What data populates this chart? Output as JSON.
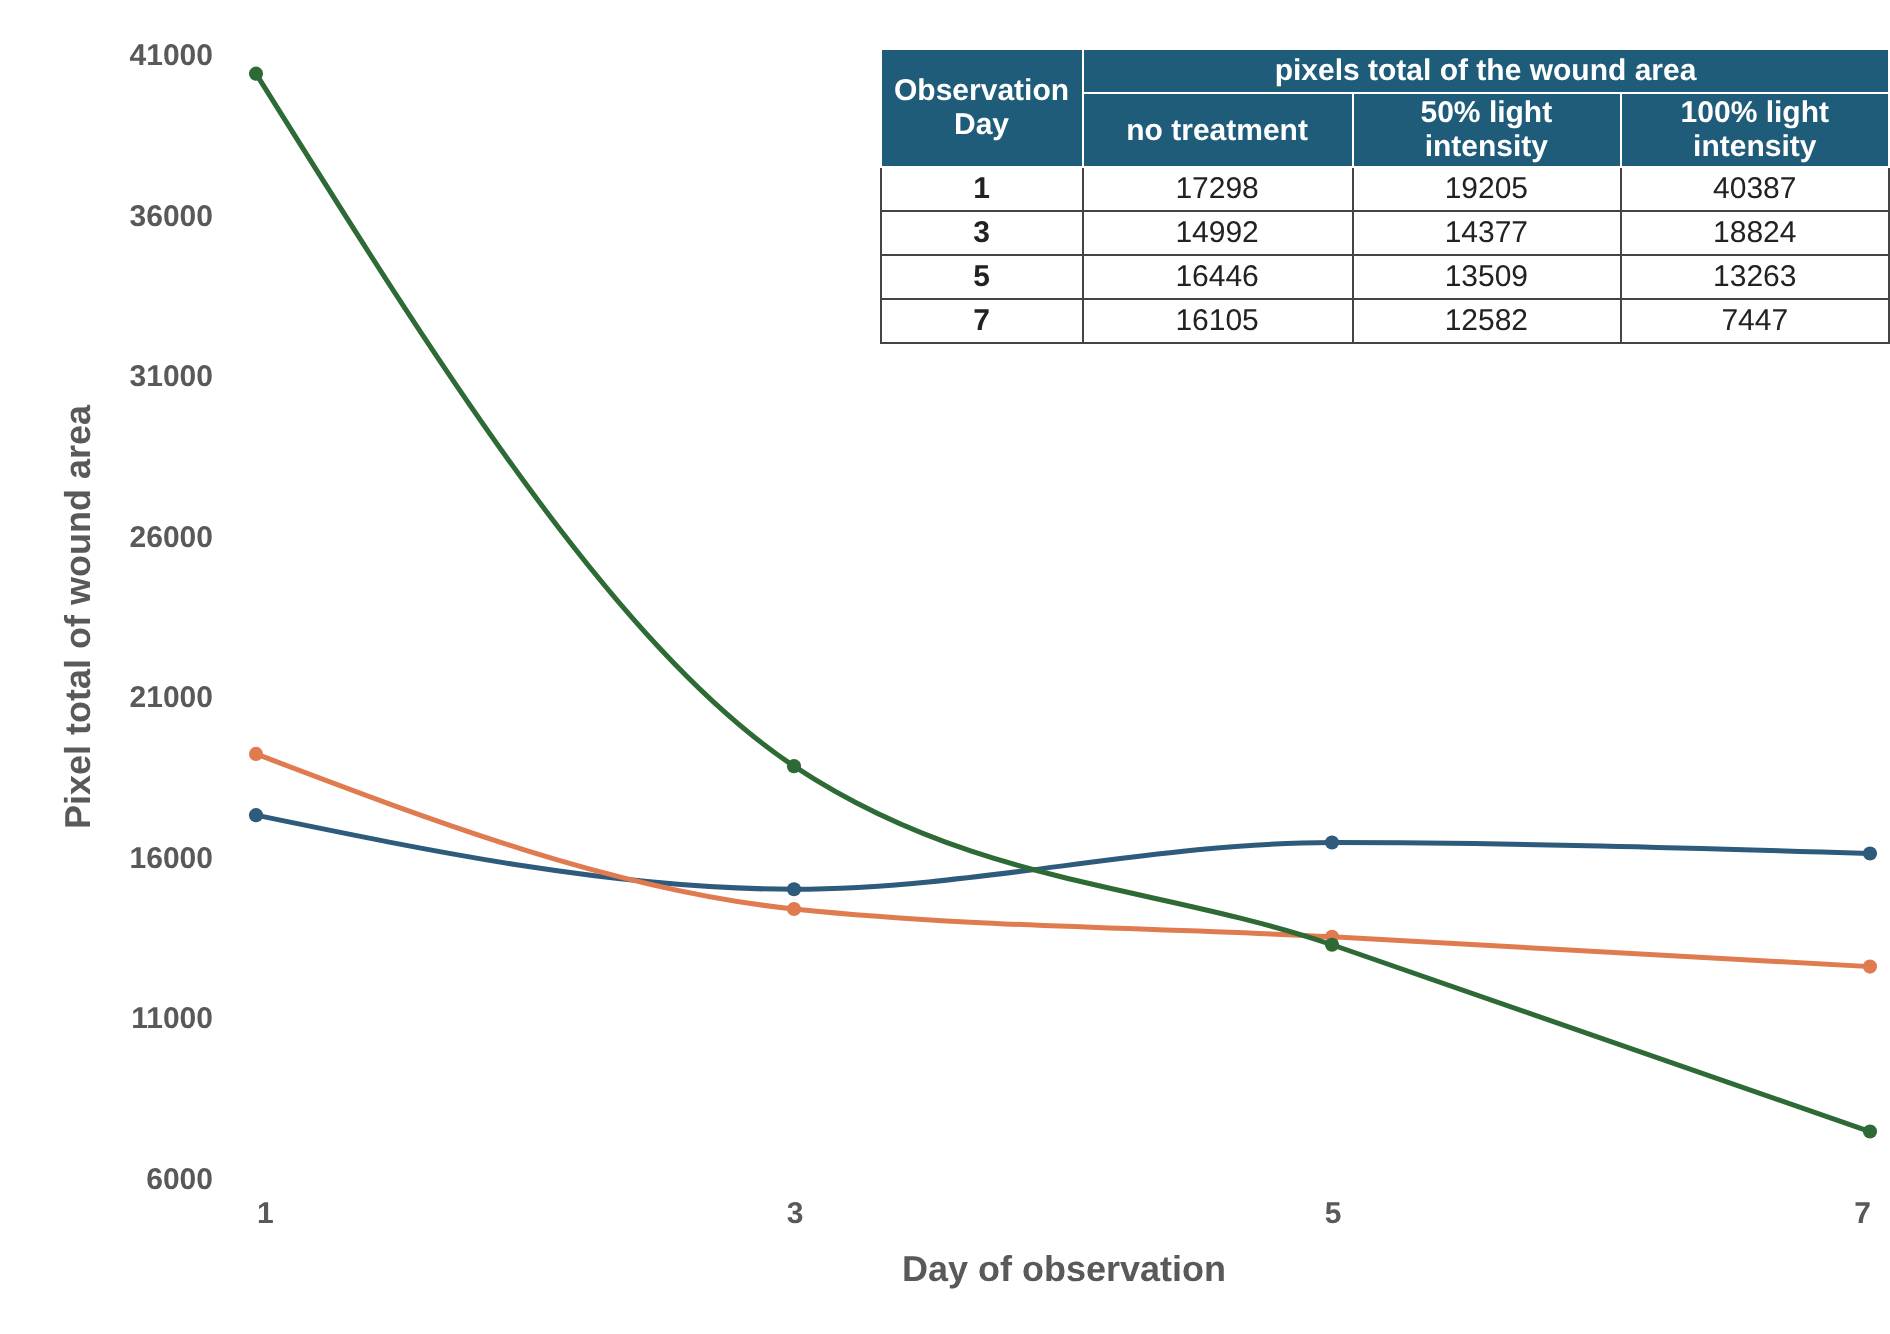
{
  "chart_data": [
    {
      "type": "line",
      "xlabel": "Day of observation",
      "ylabel": "Pixel total of wound area",
      "x": [
        1,
        3,
        5,
        7
      ],
      "xlim": [
        1,
        7
      ],
      "xticks": [
        1,
        3,
        5,
        7
      ],
      "ylim": [
        6000,
        41000
      ],
      "yticks": [
        6000,
        11000,
        16000,
        21000,
        26000,
        31000,
        36000,
        41000
      ],
      "grid": false,
      "marker": "circle",
      "line_style": "solid",
      "series": [
        {
          "color": "#2e5b7c",
          "values": [
            17298,
            14992,
            16446,
            16105
          ]
        },
        {
          "color": "#e07b4f",
          "values": [
            19205,
            14377,
            13509,
            12582
          ]
        },
        {
          "color": "#2d6a35",
          "values": [
            40387,
            18824,
            13263,
            7447
          ]
        }
      ]
    },
    {
      "type": "heatmap",
      "ylabel": "Observation Day",
      "title": "pixels total of the wound area",
      "categories": [
        "no treatment",
        "50% light intensity",
        "100% light intensity"
      ],
      "y_categories": [
        "1",
        "3",
        "5",
        "7"
      ],
      "data_labels": true,
      "cells": [
        [
          17298,
          19205,
          40387
        ],
        [
          14992,
          14377,
          18824
        ],
        [
          16446,
          13509,
          13263
        ],
        [
          16105,
          12582,
          7447
        ]
      ]
    }
  ]
}
